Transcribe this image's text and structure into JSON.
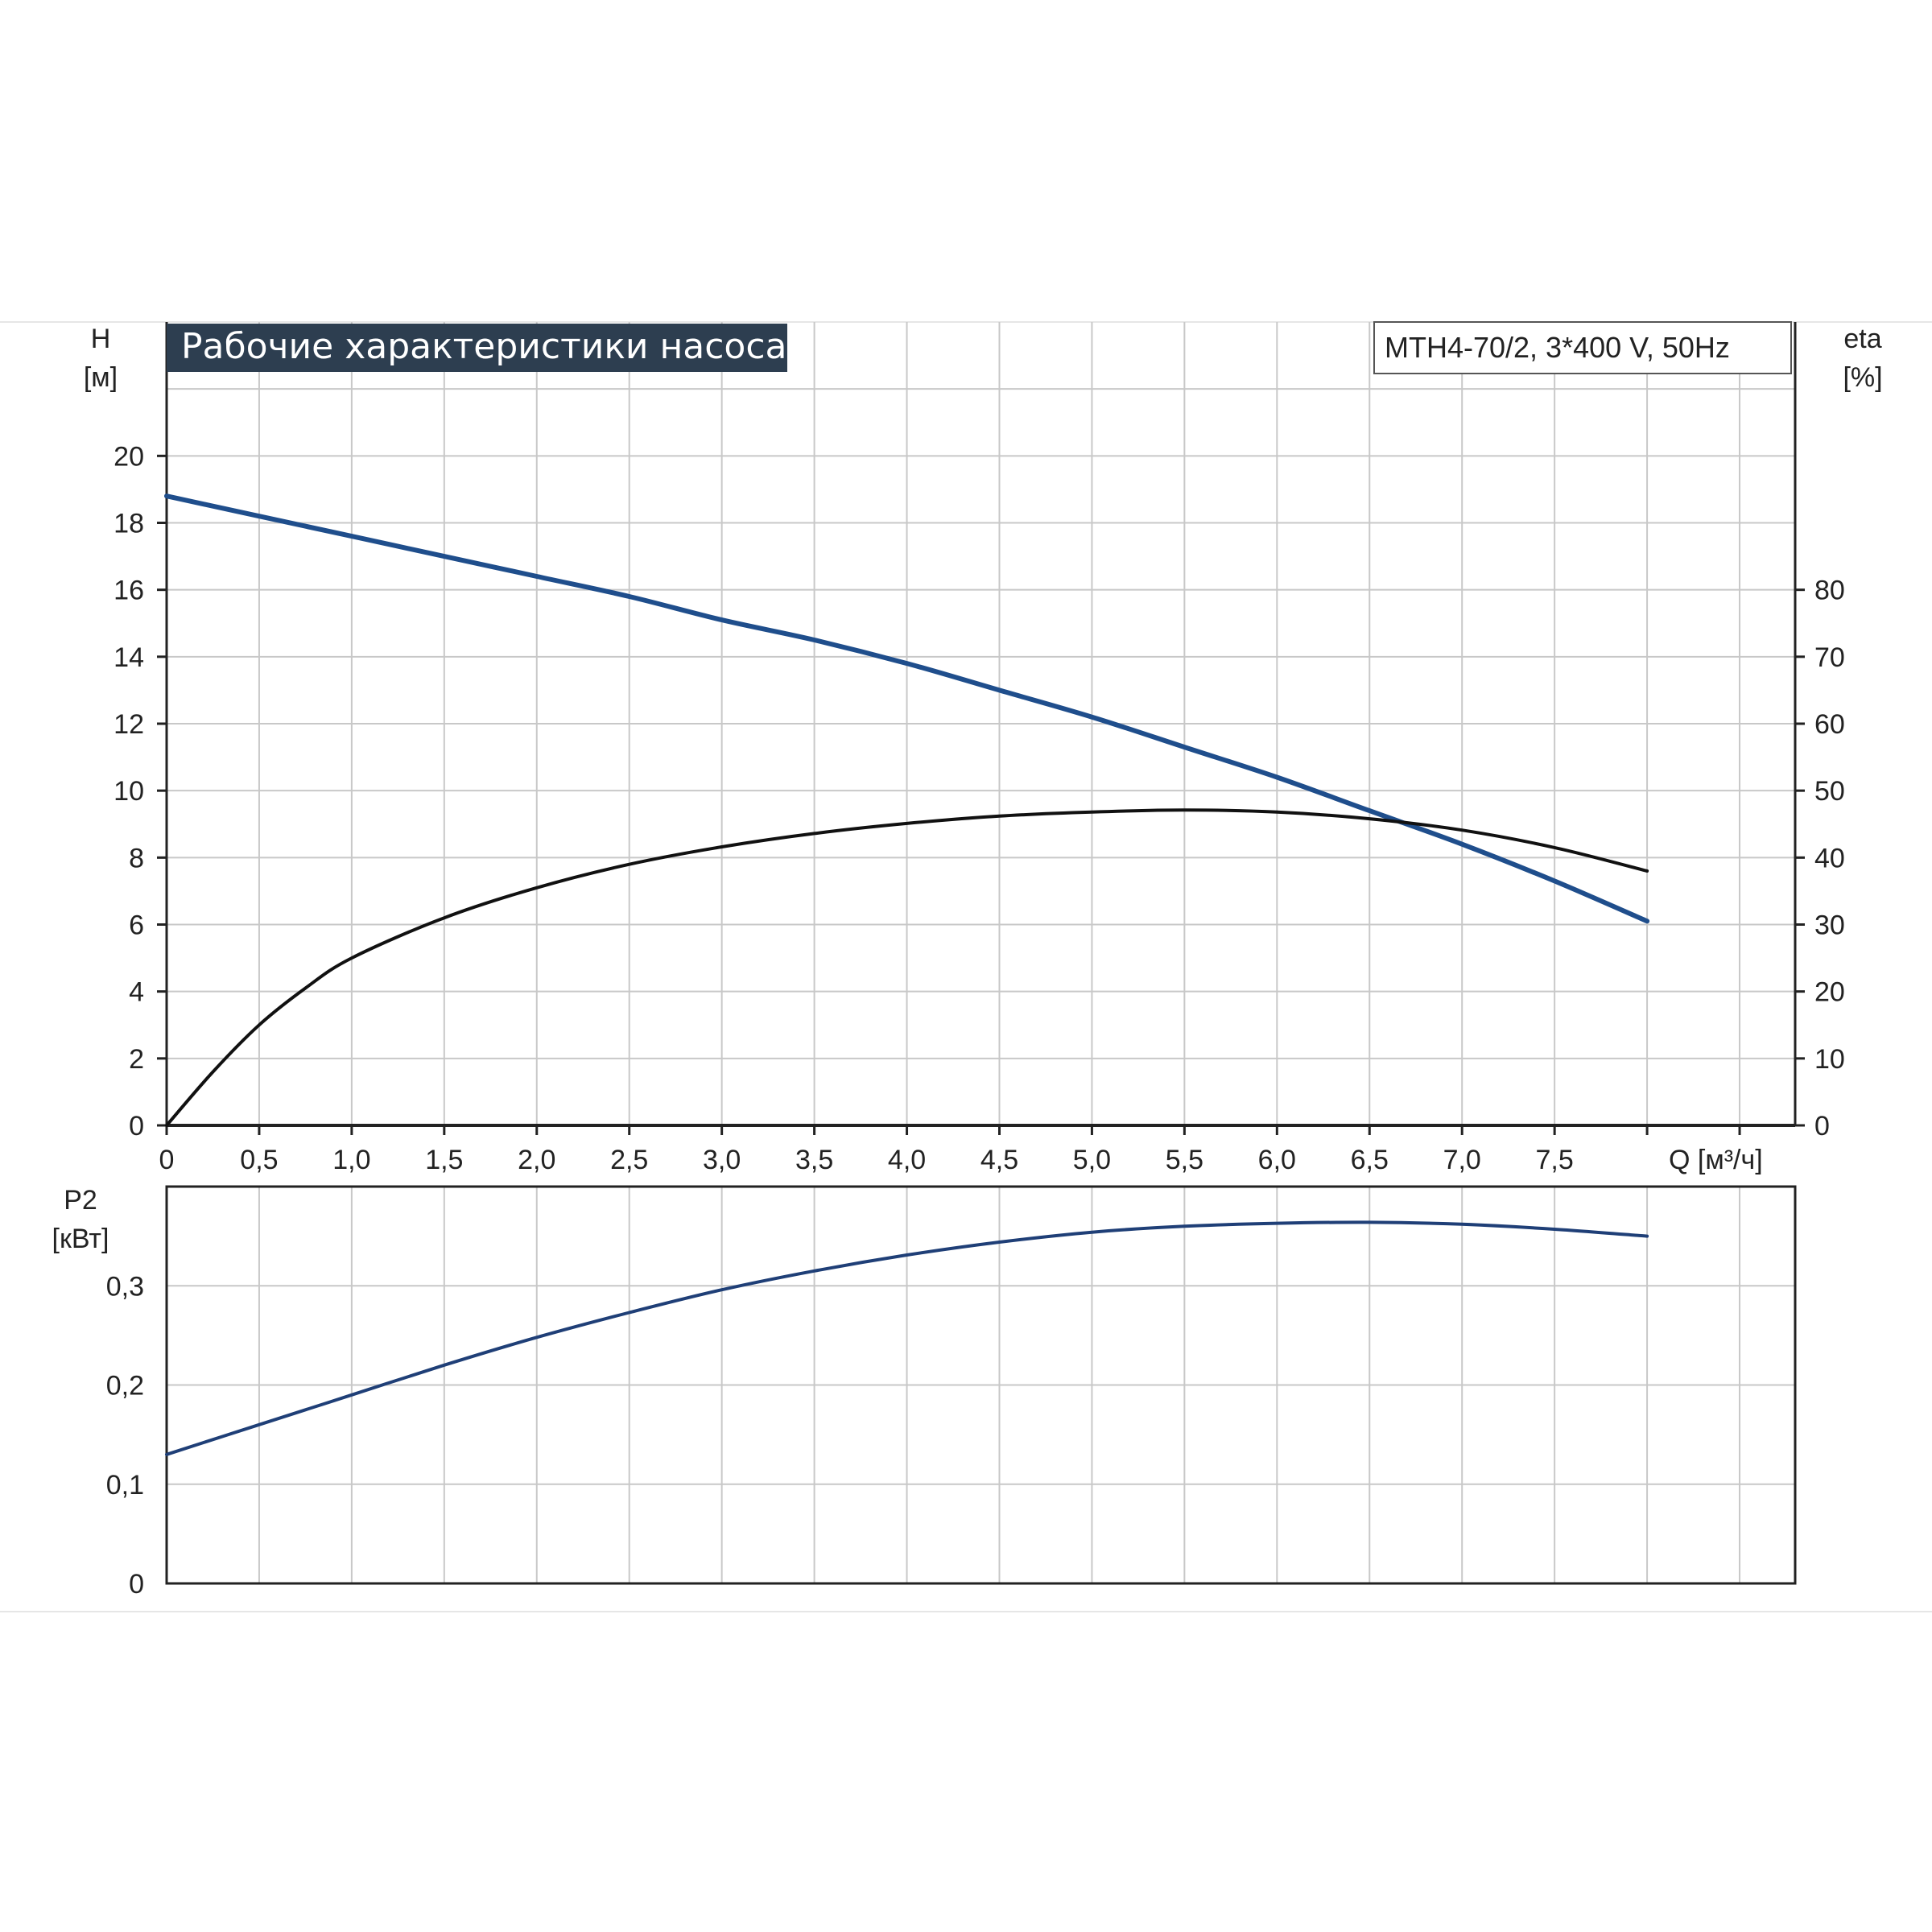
{
  "chart_data": {
    "type": "line",
    "title": "Рабочие характеристики насоса",
    "model_label": "MTH4-70/2, 3*400 V, 50Hz",
    "colors": {
      "head": "#1f4e8c",
      "efficiency": "#111111",
      "power": "#1f3f77",
      "title_bg": "#2d3e50",
      "grid": "#c8c8c8"
    },
    "x_axis": {
      "label": "Q [м³/ч]",
      "range": [
        0,
        8.8
      ],
      "ticks": [
        {
          "v": 0,
          "t": "0"
        },
        {
          "v": 0.5,
          "t": "0,5"
        },
        {
          "v": 1.0,
          "t": "1,0"
        },
        {
          "v": 1.5,
          "t": "1,5"
        },
        {
          "v": 2.0,
          "t": "2,0"
        },
        {
          "v": 2.5,
          "t": "2,5"
        },
        {
          "v": 3.0,
          "t": "3,0"
        },
        {
          "v": 3.5,
          "t": "3,5"
        },
        {
          "v": 4.0,
          "t": "4,0"
        },
        {
          "v": 4.5,
          "t": "4,5"
        },
        {
          "v": 5.0,
          "t": "5,0"
        },
        {
          "v": 5.5,
          "t": "5,5"
        },
        {
          "v": 6.0,
          "t": "6,0"
        },
        {
          "v": 6.5,
          "t": "6,5"
        },
        {
          "v": 7.0,
          "t": "7,0"
        },
        {
          "v": 7.5,
          "t": "7,5"
        }
      ]
    },
    "head_axis": {
      "label_line1": "H",
      "label_line2": "[м]",
      "range": [
        0,
        24
      ],
      "ticks": [
        {
          "v": 0,
          "t": "0"
        },
        {
          "v": 2,
          "t": "2"
        },
        {
          "v": 4,
          "t": "4"
        },
        {
          "v": 6,
          "t": "6"
        },
        {
          "v": 8,
          "t": "8"
        },
        {
          "v": 10,
          "t": "10"
        },
        {
          "v": 12,
          "t": "12"
        },
        {
          "v": 14,
          "t": "14"
        },
        {
          "v": 16,
          "t": "16"
        },
        {
          "v": 18,
          "t": "18"
        },
        {
          "v": 20,
          "t": "20"
        }
      ]
    },
    "eff_axis": {
      "label_line1": "eta",
      "label_line2": "[%]",
      "range": [
        0,
        120
      ],
      "ticks": [
        {
          "v": 0,
          "t": "0"
        },
        {
          "v": 10,
          "t": "10"
        },
        {
          "v": 20,
          "t": "20"
        },
        {
          "v": 30,
          "t": "30"
        },
        {
          "v": 40,
          "t": "40"
        },
        {
          "v": 50,
          "t": "50"
        },
        {
          "v": 60,
          "t": "60"
        },
        {
          "v": 70,
          "t": "70"
        },
        {
          "v": 80,
          "t": "80"
        }
      ]
    },
    "power_axis": {
      "label_line1": "P2",
      "label_line2": "[кВт]",
      "range": [
        0,
        0.4
      ],
      "ticks": [
        {
          "v": 0,
          "t": "0"
        },
        {
          "v": 0.1,
          "t": "0,1"
        },
        {
          "v": 0.2,
          "t": "0,2"
        },
        {
          "v": 0.3,
          "t": "0,3"
        }
      ]
    },
    "series": [
      {
        "key": "head",
        "axis": "head",
        "points": [
          [
            0,
            18.8
          ],
          [
            0.5,
            18.2
          ],
          [
            1.0,
            17.6
          ],
          [
            1.5,
            17.0
          ],
          [
            2.0,
            16.4
          ],
          [
            2.5,
            15.8
          ],
          [
            3.0,
            15.1
          ],
          [
            3.5,
            14.5
          ],
          [
            4.0,
            13.8
          ],
          [
            4.5,
            13.0
          ],
          [
            5.0,
            12.2
          ],
          [
            5.5,
            11.3
          ],
          [
            6.0,
            10.4
          ],
          [
            6.5,
            9.4
          ],
          [
            7.0,
            8.4
          ],
          [
            7.5,
            7.3
          ],
          [
            8.0,
            6.1
          ]
        ]
      },
      {
        "key": "efficiency",
        "axis": "eff",
        "points": [
          [
            0,
            0
          ],
          [
            0.25,
            8
          ],
          [
            0.5,
            15
          ],
          [
            0.75,
            20.5
          ],
          [
            1.0,
            25
          ],
          [
            1.5,
            31
          ],
          [
            2.0,
            35.5
          ],
          [
            2.5,
            39
          ],
          [
            3.0,
            41.6
          ],
          [
            3.5,
            43.6
          ],
          [
            4.0,
            45.1
          ],
          [
            4.5,
            46.2
          ],
          [
            5.0,
            46.8
          ],
          [
            5.5,
            47.1
          ],
          [
            6.0,
            46.8
          ],
          [
            6.5,
            45.8
          ],
          [
            7.0,
            44.1
          ],
          [
            7.5,
            41.5
          ],
          [
            8.0,
            38
          ]
        ]
      },
      {
        "key": "power",
        "axis": "power",
        "points": [
          [
            0,
            0.13
          ],
          [
            0.5,
            0.16
          ],
          [
            1.0,
            0.19
          ],
          [
            1.5,
            0.22
          ],
          [
            2.0,
            0.248
          ],
          [
            2.5,
            0.273
          ],
          [
            3.0,
            0.296
          ],
          [
            3.5,
            0.315
          ],
          [
            4.0,
            0.331
          ],
          [
            4.5,
            0.344
          ],
          [
            5.0,
            0.354
          ],
          [
            5.5,
            0.36
          ],
          [
            6.0,
            0.363
          ],
          [
            6.5,
            0.364
          ],
          [
            7.0,
            0.362
          ],
          [
            7.5,
            0.357
          ],
          [
            8.0,
            0.35
          ]
        ]
      }
    ]
  }
}
